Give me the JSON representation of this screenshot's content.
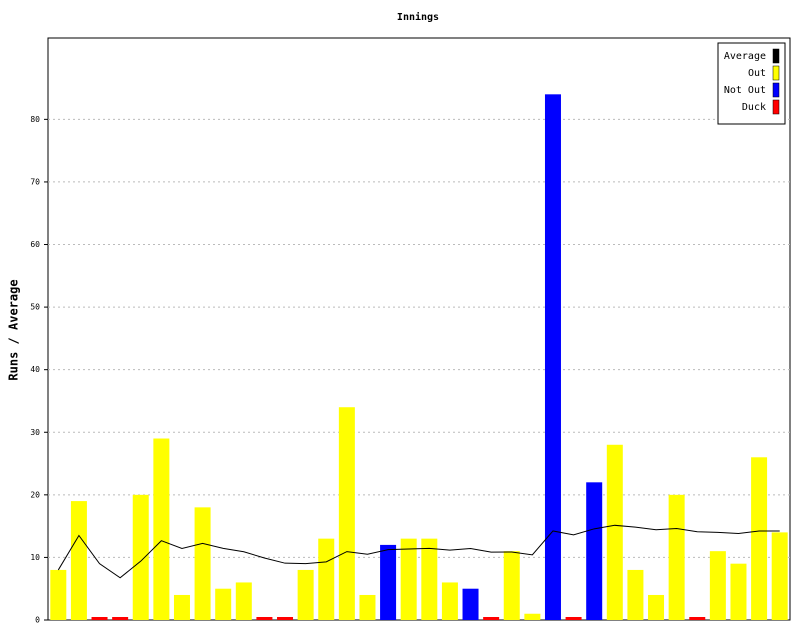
{
  "chart_data": {
    "type": "bar",
    "title": "Innings",
    "y_label": "Runs / Average",
    "ylim": [
      0,
      93
    ],
    "yticks": [
      0,
      10,
      20,
      30,
      40,
      50,
      60,
      70,
      80
    ],
    "grid": true,
    "legend": "top-right",
    "series": [
      {
        "name": "Average",
        "color": "#000000",
        "kind": "line",
        "values": [
          8,
          13.5,
          9,
          6.75,
          9.4,
          12.67,
          11.43,
          12.25,
          11.44,
          10.9,
          9.91,
          9.08,
          9.0,
          9.29,
          10.93,
          10.5,
          11.25,
          11.35,
          11.44,
          11.16,
          11.42,
          10.85,
          10.86,
          10.41,
          14.23,
          13.61,
          14.57,
          15.13,
          14.84,
          14.42,
          14.63,
          14.11,
          14.0,
          13.83,
          14.23,
          14.22
        ]
      },
      {
        "name": "Out",
        "color": "#ffff00",
        "kind": "bar",
        "values": [
          8,
          19,
          null,
          null,
          20,
          29,
          4,
          18,
          5,
          6,
          null,
          null,
          8,
          13,
          34,
          4,
          null,
          13,
          13,
          6,
          null,
          null,
          11,
          1,
          null,
          null,
          null,
          28,
          8,
          4,
          20,
          null,
          11,
          9,
          26,
          14
        ]
      },
      {
        "name": "Not Out",
        "color": "#0000ff",
        "kind": "bar",
        "values": [
          null,
          null,
          null,
          null,
          null,
          null,
          null,
          null,
          null,
          null,
          null,
          null,
          null,
          null,
          null,
          null,
          12,
          null,
          null,
          null,
          5,
          null,
          null,
          null,
          84,
          null,
          22,
          null,
          null,
          null,
          null,
          null,
          null,
          null,
          null,
          null
        ]
      },
      {
        "name": "Duck",
        "color": "#ff0000",
        "kind": "bar",
        "values": [
          null,
          null,
          0,
          0,
          null,
          null,
          null,
          null,
          null,
          null,
          0,
          0,
          null,
          null,
          null,
          null,
          null,
          null,
          null,
          null,
          null,
          0,
          null,
          null,
          null,
          0,
          null,
          null,
          null,
          null,
          null,
          0,
          null,
          null,
          null,
          null
        ]
      }
    ]
  }
}
